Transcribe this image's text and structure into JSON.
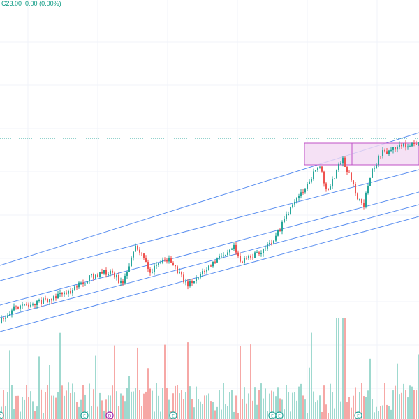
{
  "legend": {
    "close_label": "C",
    "close_value": "23.00",
    "change": "0.00",
    "change_pct": "(0.00%)"
  },
  "colors": {
    "up": "#26a69a",
    "down": "#ef5350",
    "channel": "#5b8ff0",
    "rectangle_fill": "#f3d9f3",
    "rectangle_stroke": "#c051c6",
    "last_price_line": "#26a69a",
    "marker_earnings": "#26a69a",
    "marker_dividend": "#9c27b0",
    "grid": "#f0f3fa"
  },
  "markers": [
    {
      "type": "earnings",
      "label": "E"
    },
    {
      "type": "earnings",
      "label": "E"
    },
    {
      "type": "earnings",
      "label": "E"
    },
    {
      "type": "earnings",
      "label": "E"
    },
    {
      "type": "earnings",
      "label": "E"
    }
  ],
  "marker_dividend": {
    "type": "dividend",
    "label": "D"
  },
  "chart_data": {
    "type": "candlestick",
    "last_close": 23.0,
    "series": [
      {
        "name": "price",
        "values": []
      },
      {
        "name": "volume",
        "values": []
      }
    ]
  }
}
